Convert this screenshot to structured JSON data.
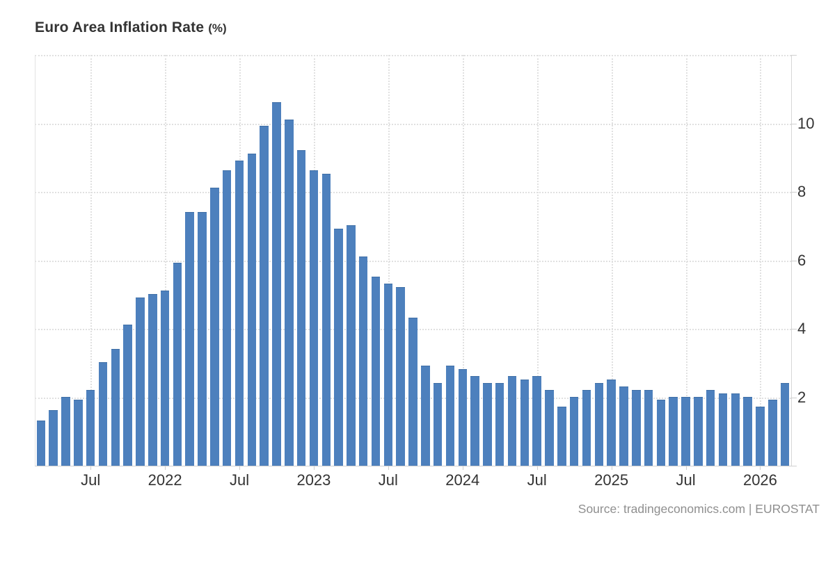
{
  "title": {
    "text": "Euro Area Inflation Rate",
    "unit": "(%)"
  },
  "source_text": "Source: tradingeconomics.com | EUROSTAT",
  "colors": {
    "bar": "#4d80bd",
    "bar_edge": "#3f6fa6",
    "grid": "#e0e0e0",
    "axis": "#cfcfcf",
    "tick_label": "#333333",
    "source": "#8f8f8f",
    "background": "#ffffff"
  },
  "chart_data": {
    "type": "bar",
    "title": "Euro Area Inflation Rate (%)",
    "xlabel": "",
    "ylabel": "",
    "ylim": [
      0,
      12
    ],
    "yticks_labeled": [
      2,
      4,
      6,
      8,
      10
    ],
    "yticks_grid": [
      2,
      4,
      6,
      8,
      10,
      12
    ],
    "grid": "dotted",
    "legend": "none",
    "categories": [
      "2021-03",
      "2021-04",
      "2021-05",
      "2021-06",
      "2021-07",
      "2021-08",
      "2021-09",
      "2021-10",
      "2021-11",
      "2021-12",
      "2022-01",
      "2022-02",
      "2022-03",
      "2022-04",
      "2022-05",
      "2022-06",
      "2022-07",
      "2022-08",
      "2022-09",
      "2022-10",
      "2022-11",
      "2022-12",
      "2023-01",
      "2023-02",
      "2023-03",
      "2023-04",
      "2023-05",
      "2023-06",
      "2023-07",
      "2023-08",
      "2023-09",
      "2023-10",
      "2023-11",
      "2023-12",
      "2024-01",
      "2024-02",
      "2024-03",
      "2024-04",
      "2024-05",
      "2024-06",
      "2024-07",
      "2024-08",
      "2024-09",
      "2024-10",
      "2024-11",
      "2024-12",
      "2025-01",
      "2025-02",
      "2025-03",
      "2025-04",
      "2025-05",
      "2025-06",
      "2025-07",
      "2025-08",
      "2025-09",
      "2025-10",
      "2025-11",
      "2025-12",
      "2026-01",
      "2026-02",
      "2026-03"
    ],
    "values": [
      1.3,
      1.6,
      2.0,
      1.9,
      2.2,
      3.0,
      3.4,
      4.1,
      4.9,
      5.0,
      5.1,
      5.9,
      7.4,
      7.4,
      8.1,
      8.6,
      8.9,
      9.1,
      9.9,
      10.6,
      10.1,
      9.2,
      8.6,
      8.5,
      6.9,
      7.0,
      6.1,
      5.5,
      5.3,
      5.2,
      4.3,
      2.9,
      2.4,
      2.9,
      2.8,
      2.6,
      2.4,
      2.4,
      2.6,
      2.5,
      2.6,
      2.2,
      1.7,
      2.0,
      2.2,
      2.4,
      2.5,
      2.3,
      2.2,
      2.2,
      1.9,
      2.0,
      2.0,
      2.0,
      2.2,
      2.1,
      2.1,
      2.0,
      1.7,
      1.9,
      2.4
    ],
    "x_tick_labels": [
      {
        "index": 4,
        "label": "Jul"
      },
      {
        "index": 10,
        "label": "2022"
      },
      {
        "index": 16,
        "label": "Jul"
      },
      {
        "index": 22,
        "label": "2023"
      },
      {
        "index": 28,
        "label": "Jul"
      },
      {
        "index": 34,
        "label": "2024"
      },
      {
        "index": 40,
        "label": "Jul"
      },
      {
        "index": 46,
        "label": "2025"
      },
      {
        "index": 52,
        "label": "Jul"
      },
      {
        "index": 58,
        "label": "2026"
      }
    ]
  }
}
